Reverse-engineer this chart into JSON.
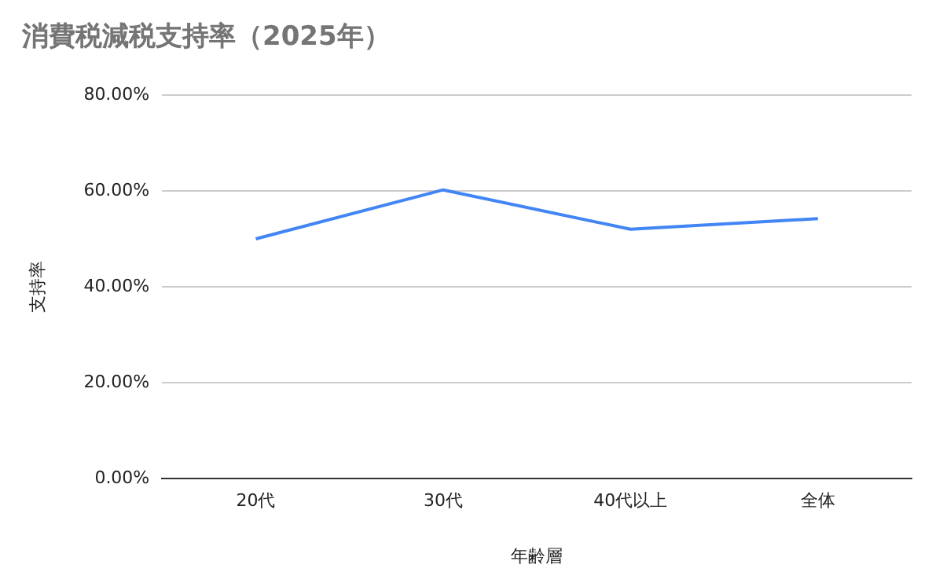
{
  "chart_data": {
    "type": "line",
    "title": "消費税減税支持率（2025年）",
    "xlabel": "年齢層",
    "ylabel": "支持率",
    "categories": [
      "20代",
      "30代",
      "40代以上",
      "全体"
    ],
    "series": [
      {
        "color": "#4285f4",
        "values": [
          50.0,
          60.2,
          52.0,
          54.2
        ]
      }
    ],
    "ylim": [
      0,
      80
    ],
    "yticks": [
      {
        "value": 0,
        "label": "0.00%"
      },
      {
        "value": 20,
        "label": "20.00%"
      },
      {
        "value": 40,
        "label": "40.00%"
      },
      {
        "value": 60,
        "label": "60.00%"
      },
      {
        "value": 80,
        "label": "80.00%"
      }
    ],
    "grid": "y",
    "legend": false,
    "marker": "none",
    "line_style": "solid"
  }
}
